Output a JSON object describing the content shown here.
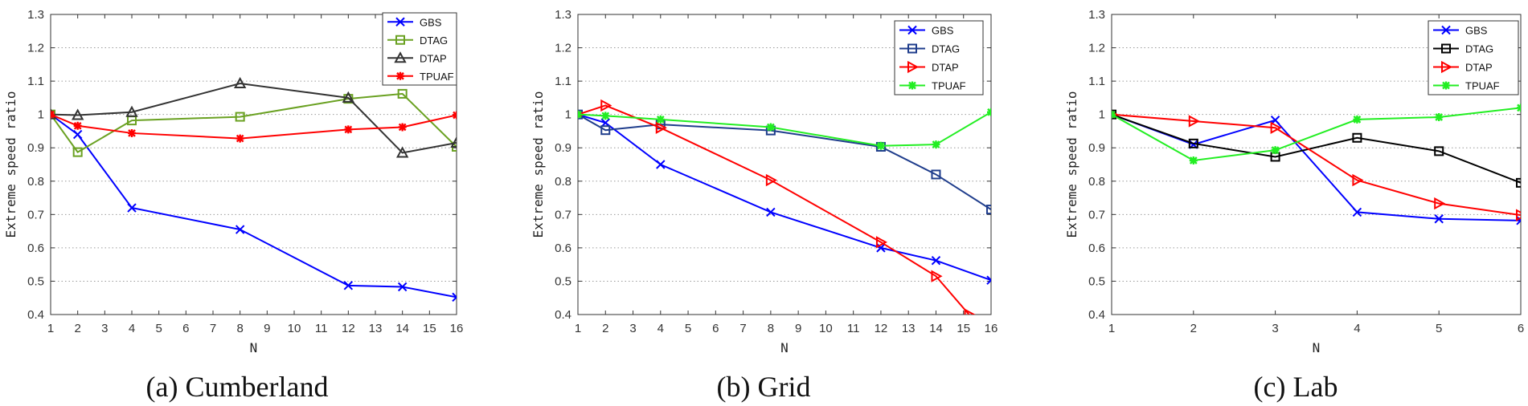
{
  "chart_data": [
    {
      "type": "line",
      "caption": "(a) Cumberland",
      "xlabel": "N",
      "ylabel": "Extreme speed ratio",
      "ylim": [
        0.4,
        1.3
      ],
      "yticks": [
        0.4,
        0.5,
        0.6,
        0.7,
        0.8,
        0.9,
        1,
        1.1,
        1.2,
        1.3
      ],
      "ytick_labels": [
        "0.4",
        "0.5",
        "0.6",
        "0.7",
        "0.8",
        "0.9",
        "1",
        "1.1",
        "1.2",
        "1.3"
      ],
      "xticks": [
        "1",
        "2",
        "3",
        "4",
        "5",
        "6",
        "7",
        "8",
        "9",
        "10",
        "11",
        "12",
        "13",
        "14",
        "15",
        "16"
      ],
      "grid": "horizontal dotted",
      "legend": "top-right",
      "series": [
        {
          "name": "GBS",
          "color": "#0000ff",
          "marker": "x",
          "x": [
            1,
            2,
            4,
            8,
            12,
            14,
            16
          ],
          "values": [
            1.0,
            0.94,
            0.72,
            0.655,
            0.487,
            0.483,
            0.452
          ]
        },
        {
          "name": "DTAG",
          "color": "#6aa122",
          "marker": "square",
          "x": [
            1,
            2,
            4,
            8,
            12,
            14,
            16
          ],
          "values": [
            1.0,
            0.887,
            0.982,
            0.993,
            1.047,
            1.062,
            0.903
          ]
        },
        {
          "name": "DTAP",
          "color": "#333333",
          "marker": "triangle-up",
          "x": [
            1,
            2,
            4,
            8,
            12,
            14,
            16
          ],
          "values": [
            1.0,
            0.998,
            1.007,
            1.093,
            1.05,
            0.885,
            0.915
          ]
        },
        {
          "name": "TPUAF",
          "color": "#ff0000",
          "marker": "star",
          "x": [
            1,
            2,
            4,
            8,
            12,
            14,
            16
          ],
          "values": [
            1.0,
            0.966,
            0.944,
            0.928,
            0.955,
            0.962,
            0.998
          ]
        }
      ]
    },
    {
      "type": "line",
      "caption": "(b) Grid",
      "xlabel": "N",
      "ylabel": "Extreme speed ratio",
      "ylim": [
        0.4,
        1.3
      ],
      "yticks": [
        0.4,
        0.5,
        0.6,
        0.7,
        0.8,
        0.9,
        1,
        1.1,
        1.2,
        1.3
      ],
      "ytick_labels": [
        "0.4",
        "0.5",
        "0.6",
        "0.7",
        "0.8",
        "0.9",
        "1",
        "1.1",
        "1.2",
        "1.3"
      ],
      "xticks": [
        "1",
        "2",
        "3",
        "4",
        "5",
        "6",
        "7",
        "8",
        "9",
        "10",
        "11",
        "12",
        "13",
        "14",
        "15",
        "16"
      ],
      "grid": "horizontal dotted",
      "legend": "top-right",
      "series": [
        {
          "name": "GBS",
          "color": "#0000ff",
          "marker": "x",
          "x": [
            1,
            2,
            4,
            8,
            12,
            14,
            16
          ],
          "values": [
            1.0,
            0.975,
            0.85,
            0.707,
            0.6,
            0.562,
            0.503
          ]
        },
        {
          "name": "DTAG",
          "color": "#1f3d8c",
          "marker": "square",
          "x": [
            1,
            2,
            4,
            8,
            12,
            14,
            16
          ],
          "values": [
            1.0,
            0.953,
            0.97,
            0.952,
            0.903,
            0.82,
            0.715
          ]
        },
        {
          "name": "DTAP",
          "color": "#ff0000",
          "marker": "triangle-right",
          "x": [
            1,
            2,
            4,
            8,
            12,
            14,
            15.2
          ],
          "values": [
            1.0,
            1.027,
            0.96,
            0.803,
            0.617,
            0.515,
            0.4
          ]
        },
        {
          "name": "TPUAF",
          "color": "#22ee22",
          "marker": "star",
          "x": [
            1,
            2,
            4,
            8,
            12,
            14,
            16
          ],
          "values": [
            1.0,
            0.996,
            0.985,
            0.962,
            0.906,
            0.91,
            1.007
          ]
        }
      ]
    },
    {
      "type": "line",
      "caption": "(c) Lab",
      "xlabel": "N",
      "ylabel": "Extreme speed ratio",
      "ylim": [
        0.4,
        1.3
      ],
      "yticks": [
        0.4,
        0.5,
        0.6,
        0.7,
        0.8,
        0.9,
        1,
        1.1,
        1.2,
        1.3
      ],
      "ytick_labels": [
        "0.4",
        "0.5",
        "0.6",
        "0.7",
        "0.8",
        "0.9",
        "1",
        "1.1",
        "1.2",
        "1.3"
      ],
      "xticks": [
        "1",
        "2",
        "3",
        "4",
        "5",
        "6"
      ],
      "grid": "horizontal dotted",
      "legend": "top-right",
      "series": [
        {
          "name": "GBS",
          "color": "#0000ff",
          "marker": "x",
          "x": [
            1,
            2,
            3,
            4,
            5,
            6
          ],
          "values": [
            1.0,
            0.91,
            0.983,
            0.707,
            0.687,
            0.682
          ]
        },
        {
          "name": "DTAG",
          "color": "#000000",
          "marker": "square",
          "x": [
            1,
            2,
            3,
            4,
            5,
            6
          ],
          "values": [
            1.0,
            0.913,
            0.873,
            0.93,
            0.89,
            0.795
          ]
        },
        {
          "name": "DTAP",
          "color": "#ff0000",
          "marker": "triangle-right",
          "x": [
            1,
            2,
            3,
            4,
            5,
            6
          ],
          "values": [
            1.0,
            0.98,
            0.96,
            0.803,
            0.733,
            0.698
          ]
        },
        {
          "name": "TPUAF",
          "color": "#22ee22",
          "marker": "star",
          "x": [
            1,
            2,
            3,
            4,
            5,
            6
          ],
          "values": [
            1.0,
            0.862,
            0.893,
            0.985,
            0.992,
            1.02
          ]
        }
      ]
    }
  ]
}
